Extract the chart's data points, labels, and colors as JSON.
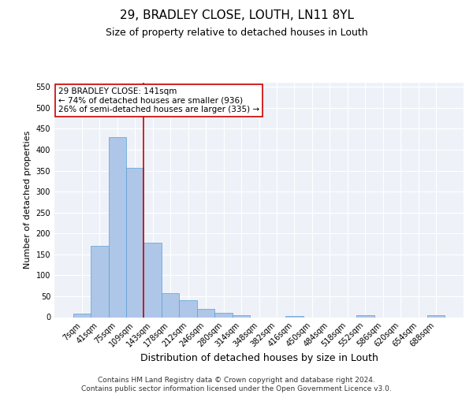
{
  "title1": "29, BRADLEY CLOSE, LOUTH, LN11 8YL",
  "title2": "Size of property relative to detached houses in Louth",
  "xlabel": "Distribution of detached houses by size in Louth",
  "ylabel": "Number of detached properties",
  "bin_labels": [
    "7sqm",
    "41sqm",
    "75sqm",
    "109sqm",
    "143sqm",
    "178sqm",
    "212sqm",
    "246sqm",
    "280sqm",
    "314sqm",
    "348sqm",
    "382sqm",
    "416sqm",
    "450sqm",
    "484sqm",
    "518sqm",
    "552sqm",
    "586sqm",
    "620sqm",
    "654sqm",
    "688sqm"
  ],
  "bar_heights": [
    8,
    170,
    430,
    357,
    178,
    57,
    40,
    20,
    10,
    5,
    0,
    0,
    3,
    0,
    0,
    0,
    4,
    0,
    0,
    0,
    4
  ],
  "bar_color": "#aec6e8",
  "bar_edgecolor": "#5a9fd4",
  "vline_x_index": 4,
  "vline_color": "#cc0000",
  "annotation_text": "29 BRADLEY CLOSE: 141sqm\n← 74% of detached houses are smaller (936)\n26% of semi-detached houses are larger (335) →",
  "annotation_box_color": "#ffffff",
  "annotation_box_edgecolor": "#cc0000",
  "annotation_fontsize": 7.5,
  "background_color": "#eef2f8",
  "grid_color": "#ffffff",
  "ylim": [
    0,
    560
  ],
  "yticks": [
    0,
    50,
    100,
    150,
    200,
    250,
    300,
    350,
    400,
    450,
    500,
    550
  ],
  "footer": "Contains HM Land Registry data © Crown copyright and database right 2024.\nContains public sector information licensed under the Open Government Licence v3.0.",
  "title1_fontsize": 11,
  "title2_fontsize": 9,
  "xlabel_fontsize": 9,
  "ylabel_fontsize": 8,
  "tick_fontsize": 7,
  "footer_fontsize": 6.5
}
